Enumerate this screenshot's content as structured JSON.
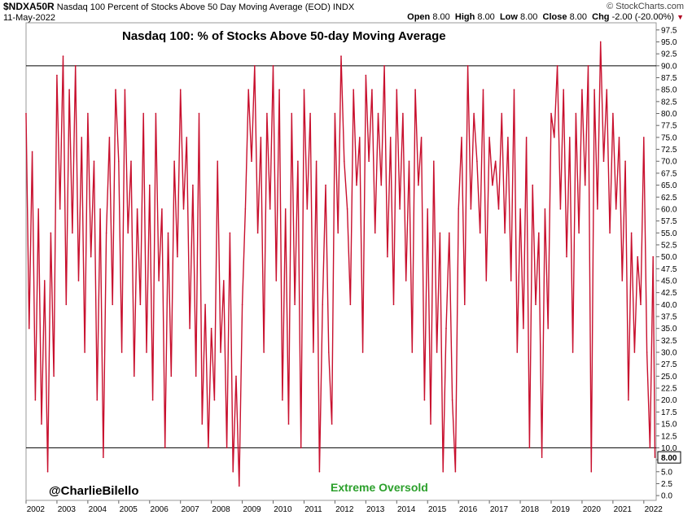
{
  "header": {
    "symbol": "$NDXA50R",
    "description": "Nasdaq 100 Percent of Stocks Above 50 Day Moving Average (EOD)",
    "exchange": "INDX",
    "date": "11-May-2022",
    "brand": "© StockCharts.com",
    "open_label": "Open",
    "open_value": "8.00",
    "high_label": "High",
    "high_value": "8.00",
    "low_label": "Low",
    "low_value": "8.00",
    "close_label": "Close",
    "close_value": "8.00",
    "chg_label": "Chg",
    "chg_value": "-2.00 (-20.00%)"
  },
  "colors": {
    "line": "#c8102e",
    "grid": "#e6e6e6",
    "ref_line": "#000000",
    "annotation": "#2ca02c",
    "last_value_box": "#000000"
  },
  "chart_data": {
    "type": "line",
    "title": "Nasdaq 100: % of Stocks Above 50-day Moving Average",
    "xlabel": "",
    "ylabel": "",
    "x_tick_labels": [
      "2002",
      "2003",
      "2004",
      "2005",
      "2006",
      "2007",
      "2008",
      "2009",
      "2010",
      "2011",
      "2012",
      "2013",
      "2014",
      "2015",
      "2016",
      "2017",
      "2018",
      "2019",
      "2020",
      "2021",
      "2022"
    ],
    "y_tick_labels": [
      "0.0",
      "2.5",
      "5.0",
      "7.5",
      "10.0",
      "12.5",
      "15.0",
      "17.5",
      "20.0",
      "22.5",
      "25.0",
      "27.5",
      "30.0",
      "32.5",
      "35.0",
      "37.5",
      "40.0",
      "42.5",
      "45.0",
      "47.5",
      "50.0",
      "52.5",
      "55.0",
      "57.5",
      "60.0",
      "62.5",
      "65.0",
      "67.5",
      "70.0",
      "72.5",
      "75.0",
      "77.5",
      "80.0",
      "82.5",
      "85.0",
      "87.5",
      "90.0",
      "92.5",
      "95.0",
      "97.5"
    ],
    "xlim": [
      2002.0,
      2022.4
    ],
    "ylim": [
      -1,
      99
    ],
    "grid": false,
    "reference_lines": [
      90,
      10
    ],
    "last_value": "8.00",
    "annotations": [
      "@CharlieBilello",
      "Extreme Oversold"
    ],
    "series": [
      {
        "x": [
          2002.0,
          2002.1,
          2002.2,
          2002.3,
          2002.4,
          2002.5,
          2002.6,
          2002.7,
          2002.8,
          2002.9,
          2003.0,
          2003.1,
          2003.2,
          2003.3,
          2003.4,
          2003.5,
          2003.6,
          2003.7,
          2003.8,
          2003.9,
          2004.0,
          2004.1,
          2004.2,
          2004.3,
          2004.4,
          2004.5,
          2004.6,
          2004.7,
          2004.8,
          2004.9,
          2005.0,
          2005.1,
          2005.2,
          2005.3,
          2005.4,
          2005.5,
          2005.6,
          2005.7,
          2005.8,
          2005.9,
          2006.0,
          2006.1,
          2006.2,
          2006.3,
          2006.4,
          2006.5,
          2006.6,
          2006.7,
          2006.8,
          2006.9,
          2007.0,
          2007.1,
          2007.2,
          2007.3,
          2007.4,
          2007.5,
          2007.6,
          2007.7,
          2007.8,
          2007.9,
          2008.0,
          2008.1,
          2008.2,
          2008.3,
          2008.4,
          2008.5,
          2008.6,
          2008.7,
          2008.8,
          2008.9,
          2009.0,
          2009.1,
          2009.2,
          2009.3,
          2009.4,
          2009.5,
          2009.6,
          2009.7,
          2009.8,
          2009.9,
          2010.0,
          2010.1,
          2010.2,
          2010.3,
          2010.4,
          2010.5,
          2010.6,
          2010.7,
          2010.8,
          2010.9,
          2011.0,
          2011.1,
          2011.2,
          2011.3,
          2011.4,
          2011.5,
          2011.6,
          2011.7,
          2011.8,
          2011.9,
          2012.0,
          2012.1,
          2012.2,
          2012.3,
          2012.4,
          2012.5,
          2012.6,
          2012.7,
          2012.8,
          2012.9,
          2013.0,
          2013.1,
          2013.2,
          2013.3,
          2013.4,
          2013.5,
          2013.6,
          2013.7,
          2013.8,
          2013.9,
          2014.0,
          2014.1,
          2014.2,
          2014.3,
          2014.4,
          2014.5,
          2014.6,
          2014.7,
          2014.8,
          2014.9,
          2015.0,
          2015.1,
          2015.2,
          2015.3,
          2015.4,
          2015.5,
          2015.6,
          2015.7,
          2015.8,
          2015.9,
          2016.0,
          2016.1,
          2016.2,
          2016.3,
          2016.4,
          2016.5,
          2016.6,
          2016.7,
          2016.8,
          2016.9,
          2017.0,
          2017.1,
          2017.2,
          2017.3,
          2017.4,
          2017.5,
          2017.6,
          2017.7,
          2017.8,
          2017.9,
          2018.0,
          2018.1,
          2018.2,
          2018.3,
          2018.4,
          2018.5,
          2018.6,
          2018.7,
          2018.8,
          2018.9,
          2019.0,
          2019.1,
          2019.2,
          2019.3,
          2019.4,
          2019.5,
          2019.6,
          2019.7,
          2019.8,
          2019.9,
          2020.0,
          2020.1,
          2020.2,
          2020.3,
          2020.4,
          2020.5,
          2020.6,
          2020.7,
          2020.8,
          2020.9,
          2021.0,
          2021.1,
          2021.2,
          2021.3,
          2021.4,
          2021.5,
          2021.6,
          2021.7,
          2021.8,
          2021.9,
          2022.0,
          2022.1,
          2022.2,
          2022.3,
          2022.36
        ],
        "y": [
          80,
          35,
          72,
          20,
          60,
          15,
          45,
          5,
          55,
          25,
          88,
          60,
          92,
          40,
          85,
          55,
          90,
          45,
          75,
          30,
          80,
          50,
          70,
          20,
          60,
          8,
          55,
          75,
          40,
          85,
          70,
          30,
          85,
          55,
          70,
          25,
          60,
          40,
          80,
          30,
          65,
          20,
          80,
          45,
          60,
          10,
          55,
          25,
          70,
          50,
          85,
          60,
          75,
          35,
          65,
          25,
          80,
          15,
          40,
          10,
          35,
          20,
          70,
          30,
          45,
          10,
          55,
          5,
          25,
          2,
          40,
          60,
          85,
          70,
          90,
          55,
          75,
          30,
          80,
          60,
          90,
          45,
          85,
          20,
          60,
          15,
          80,
          40,
          70,
          10,
          85,
          60,
          80,
          30,
          70,
          5,
          40,
          65,
          30,
          15,
          80,
          55,
          92,
          70,
          60,
          40,
          85,
          65,
          75,
          30,
          88,
          70,
          85,
          55,
          80,
          65,
          90,
          50,
          75,
          40,
          85,
          60,
          80,
          45,
          70,
          30,
          85,
          65,
          75,
          20,
          60,
          15,
          70,
          30,
          55,
          5,
          35,
          55,
          20,
          5,
          60,
          75,
          40,
          90,
          60,
          80,
          70,
          55,
          85,
          45,
          75,
          65,
          70,
          60,
          80,
          55,
          75,
          45,
          85,
          30,
          60,
          35,
          75,
          10,
          65,
          40,
          55,
          8,
          60,
          35,
          80,
          75,
          90,
          60,
          85,
          50,
          75,
          30,
          80,
          55,
          85,
          65,
          90,
          5,
          85,
          60,
          95,
          70,
          85,
          55,
          80,
          60,
          75,
          45,
          70,
          20,
          55,
          30,
          50,
          40,
          75,
          30,
          10,
          50,
          8
        ]
      }
    ]
  }
}
